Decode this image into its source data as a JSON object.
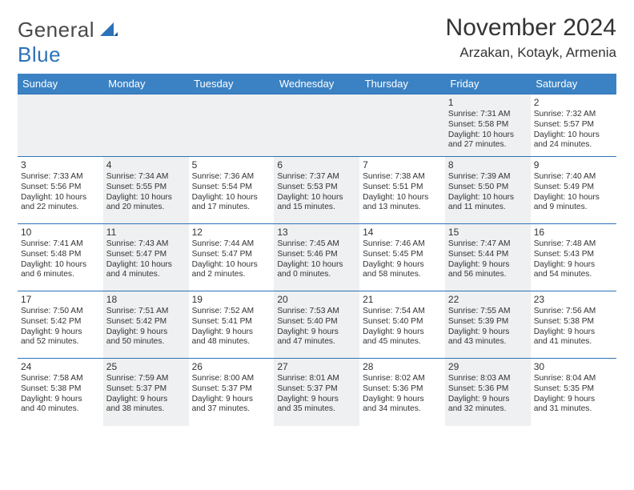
{
  "brand": {
    "text1": "General",
    "text2": "Blue",
    "shape_color": "#2d72b8"
  },
  "header": {
    "month_title": "November 2024",
    "location": "Arzakan, Kotayk, Armenia"
  },
  "colors": {
    "header_bg": "#3b82c4",
    "header_fg": "#ffffff",
    "row_border": "#2d72b8",
    "shaded_bg": "#eef0f1",
    "page_bg": "#ffffff",
    "text": "#333333"
  },
  "day_headers": [
    "Sunday",
    "Monday",
    "Tuesday",
    "Wednesday",
    "Thursday",
    "Friday",
    "Saturday"
  ],
  "weeks": [
    [
      {
        "empty": true
      },
      {
        "empty": true
      },
      {
        "empty": true
      },
      {
        "empty": true
      },
      {
        "empty": true
      },
      {
        "day": "1",
        "sunrise": "Sunrise: 7:31 AM",
        "sunset": "Sunset: 5:58 PM",
        "daylight1": "Daylight: 10 hours",
        "daylight2": "and 27 minutes."
      },
      {
        "day": "2",
        "sunrise": "Sunrise: 7:32 AM",
        "sunset": "Sunset: 5:57 PM",
        "daylight1": "Daylight: 10 hours",
        "daylight2": "and 24 minutes."
      }
    ],
    [
      {
        "day": "3",
        "sunrise": "Sunrise: 7:33 AM",
        "sunset": "Sunset: 5:56 PM",
        "daylight1": "Daylight: 10 hours",
        "daylight2": "and 22 minutes."
      },
      {
        "day": "4",
        "sunrise": "Sunrise: 7:34 AM",
        "sunset": "Sunset: 5:55 PM",
        "daylight1": "Daylight: 10 hours",
        "daylight2": "and 20 minutes."
      },
      {
        "day": "5",
        "sunrise": "Sunrise: 7:36 AM",
        "sunset": "Sunset: 5:54 PM",
        "daylight1": "Daylight: 10 hours",
        "daylight2": "and 17 minutes."
      },
      {
        "day": "6",
        "sunrise": "Sunrise: 7:37 AM",
        "sunset": "Sunset: 5:53 PM",
        "daylight1": "Daylight: 10 hours",
        "daylight2": "and 15 minutes."
      },
      {
        "day": "7",
        "sunrise": "Sunrise: 7:38 AM",
        "sunset": "Sunset: 5:51 PM",
        "daylight1": "Daylight: 10 hours",
        "daylight2": "and 13 minutes."
      },
      {
        "day": "8",
        "sunrise": "Sunrise: 7:39 AM",
        "sunset": "Sunset: 5:50 PM",
        "daylight1": "Daylight: 10 hours",
        "daylight2": "and 11 minutes."
      },
      {
        "day": "9",
        "sunrise": "Sunrise: 7:40 AM",
        "sunset": "Sunset: 5:49 PM",
        "daylight1": "Daylight: 10 hours",
        "daylight2": "and 9 minutes."
      }
    ],
    [
      {
        "day": "10",
        "sunrise": "Sunrise: 7:41 AM",
        "sunset": "Sunset: 5:48 PM",
        "daylight1": "Daylight: 10 hours",
        "daylight2": "and 6 minutes."
      },
      {
        "day": "11",
        "sunrise": "Sunrise: 7:43 AM",
        "sunset": "Sunset: 5:47 PM",
        "daylight1": "Daylight: 10 hours",
        "daylight2": "and 4 minutes."
      },
      {
        "day": "12",
        "sunrise": "Sunrise: 7:44 AM",
        "sunset": "Sunset: 5:47 PM",
        "daylight1": "Daylight: 10 hours",
        "daylight2": "and 2 minutes."
      },
      {
        "day": "13",
        "sunrise": "Sunrise: 7:45 AM",
        "sunset": "Sunset: 5:46 PM",
        "daylight1": "Daylight: 10 hours",
        "daylight2": "and 0 minutes."
      },
      {
        "day": "14",
        "sunrise": "Sunrise: 7:46 AM",
        "sunset": "Sunset: 5:45 PM",
        "daylight1": "Daylight: 9 hours",
        "daylight2": "and 58 minutes."
      },
      {
        "day": "15",
        "sunrise": "Sunrise: 7:47 AM",
        "sunset": "Sunset: 5:44 PM",
        "daylight1": "Daylight: 9 hours",
        "daylight2": "and 56 minutes."
      },
      {
        "day": "16",
        "sunrise": "Sunrise: 7:48 AM",
        "sunset": "Sunset: 5:43 PM",
        "daylight1": "Daylight: 9 hours",
        "daylight2": "and 54 minutes."
      }
    ],
    [
      {
        "day": "17",
        "sunrise": "Sunrise: 7:50 AM",
        "sunset": "Sunset: 5:42 PM",
        "daylight1": "Daylight: 9 hours",
        "daylight2": "and 52 minutes."
      },
      {
        "day": "18",
        "sunrise": "Sunrise: 7:51 AM",
        "sunset": "Sunset: 5:42 PM",
        "daylight1": "Daylight: 9 hours",
        "daylight2": "and 50 minutes."
      },
      {
        "day": "19",
        "sunrise": "Sunrise: 7:52 AM",
        "sunset": "Sunset: 5:41 PM",
        "daylight1": "Daylight: 9 hours",
        "daylight2": "and 48 minutes."
      },
      {
        "day": "20",
        "sunrise": "Sunrise: 7:53 AM",
        "sunset": "Sunset: 5:40 PM",
        "daylight1": "Daylight: 9 hours",
        "daylight2": "and 47 minutes."
      },
      {
        "day": "21",
        "sunrise": "Sunrise: 7:54 AM",
        "sunset": "Sunset: 5:40 PM",
        "daylight1": "Daylight: 9 hours",
        "daylight2": "and 45 minutes."
      },
      {
        "day": "22",
        "sunrise": "Sunrise: 7:55 AM",
        "sunset": "Sunset: 5:39 PM",
        "daylight1": "Daylight: 9 hours",
        "daylight2": "and 43 minutes."
      },
      {
        "day": "23",
        "sunrise": "Sunrise: 7:56 AM",
        "sunset": "Sunset: 5:38 PM",
        "daylight1": "Daylight: 9 hours",
        "daylight2": "and 41 minutes."
      }
    ],
    [
      {
        "day": "24",
        "sunrise": "Sunrise: 7:58 AM",
        "sunset": "Sunset: 5:38 PM",
        "daylight1": "Daylight: 9 hours",
        "daylight2": "and 40 minutes."
      },
      {
        "day": "25",
        "sunrise": "Sunrise: 7:59 AM",
        "sunset": "Sunset: 5:37 PM",
        "daylight1": "Daylight: 9 hours",
        "daylight2": "and 38 minutes."
      },
      {
        "day": "26",
        "sunrise": "Sunrise: 8:00 AM",
        "sunset": "Sunset: 5:37 PM",
        "daylight1": "Daylight: 9 hours",
        "daylight2": "and 37 minutes."
      },
      {
        "day": "27",
        "sunrise": "Sunrise: 8:01 AM",
        "sunset": "Sunset: 5:37 PM",
        "daylight1": "Daylight: 9 hours",
        "daylight2": "and 35 minutes."
      },
      {
        "day": "28",
        "sunrise": "Sunrise: 8:02 AM",
        "sunset": "Sunset: 5:36 PM",
        "daylight1": "Daylight: 9 hours",
        "daylight2": "and 34 minutes."
      },
      {
        "day": "29",
        "sunrise": "Sunrise: 8:03 AM",
        "sunset": "Sunset: 5:36 PM",
        "daylight1": "Daylight: 9 hours",
        "daylight2": "and 32 minutes."
      },
      {
        "day": "30",
        "sunrise": "Sunrise: 8:04 AM",
        "sunset": "Sunset: 5:35 PM",
        "daylight1": "Daylight: 9 hours",
        "daylight2": "and 31 minutes."
      }
    ]
  ]
}
